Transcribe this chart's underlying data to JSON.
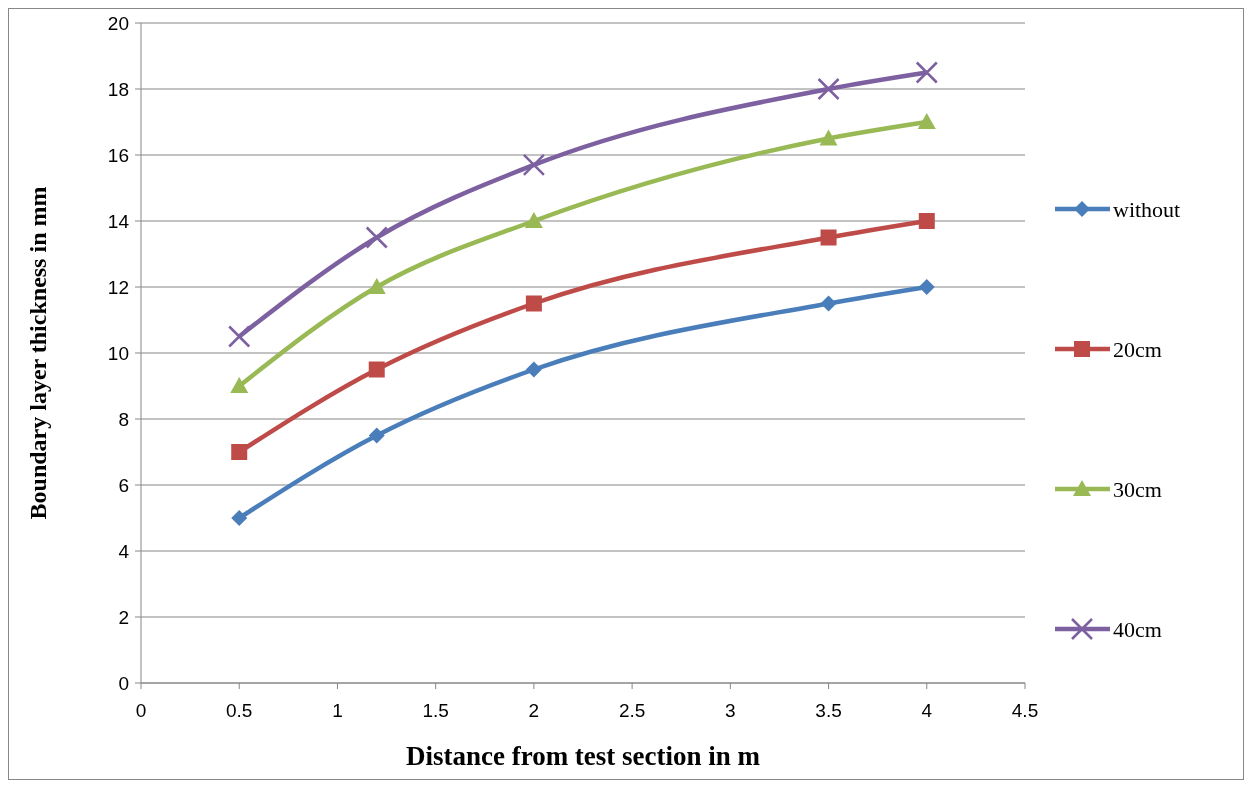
{
  "chart_data": {
    "type": "line",
    "xlabel": "Distance from test section in m",
    "ylabel": "Boundary layer thickness in mm",
    "x": [
      0.5,
      1.2,
      2,
      3.5,
      4
    ],
    "series": [
      {
        "name": "without",
        "color": "#4a7ebb",
        "marker": "diamond",
        "values": [
          5,
          7.5,
          9.5,
          11.5,
          12
        ]
      },
      {
        "name": "20cm",
        "color": "#be4b48",
        "marker": "square",
        "values": [
          7,
          9.5,
          11.5,
          13.5,
          14
        ]
      },
      {
        "name": "30cm",
        "color": "#98b954",
        "marker": "triangle",
        "values": [
          9,
          12,
          14,
          16.5,
          17
        ]
      },
      {
        "name": "40cm",
        "color": "#7d60a0",
        "marker": "cross",
        "values": [
          10.5,
          13.5,
          15.7,
          18,
          18.5
        ]
      }
    ],
    "xlim": [
      0,
      4.5
    ],
    "xticks": [
      0,
      0.5,
      1,
      1.5,
      2,
      2.5,
      3,
      3.5,
      4,
      4.5
    ],
    "ylim": [
      0,
      20
    ],
    "yticks": [
      0,
      2,
      4,
      6,
      8,
      10,
      12,
      14,
      16,
      18,
      20
    ],
    "grid": "y",
    "legend": "right",
    "line_style": "solid"
  }
}
